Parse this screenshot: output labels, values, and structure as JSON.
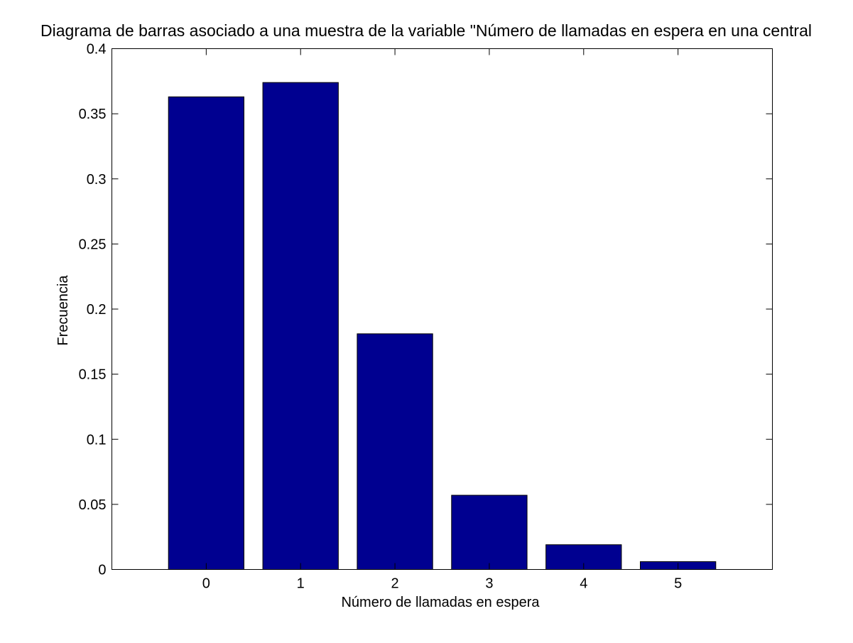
{
  "colors": {
    "bar_fill": "#000090",
    "bar_stroke": "#000000",
    "axis": "#000000",
    "background": "#ffffff"
  },
  "chart_data": {
    "type": "bar",
    "title": "Diagrama de barras asociado a una muestra de la variable \"Número de llamadas en espera en una central",
    "xlabel": "Número de llamadas en espera",
    "ylabel": "Frecuencia",
    "categories": [
      "0",
      "1",
      "2",
      "3",
      "4",
      "5"
    ],
    "values": [
      0.363,
      0.374,
      0.181,
      0.057,
      0.019,
      0.006
    ],
    "xlim": [
      -1,
      6
    ],
    "ylim": [
      0,
      0.4
    ],
    "yticks": [
      0,
      0.05,
      0.1,
      0.15,
      0.2,
      0.25,
      0.3,
      0.35,
      0.4
    ],
    "ytick_labels": [
      "0",
      "0.05",
      "0.1",
      "0.15",
      "0.2",
      "0.25",
      "0.3",
      "0.35",
      "0.4"
    ],
    "grid": false,
    "legend": "none"
  }
}
